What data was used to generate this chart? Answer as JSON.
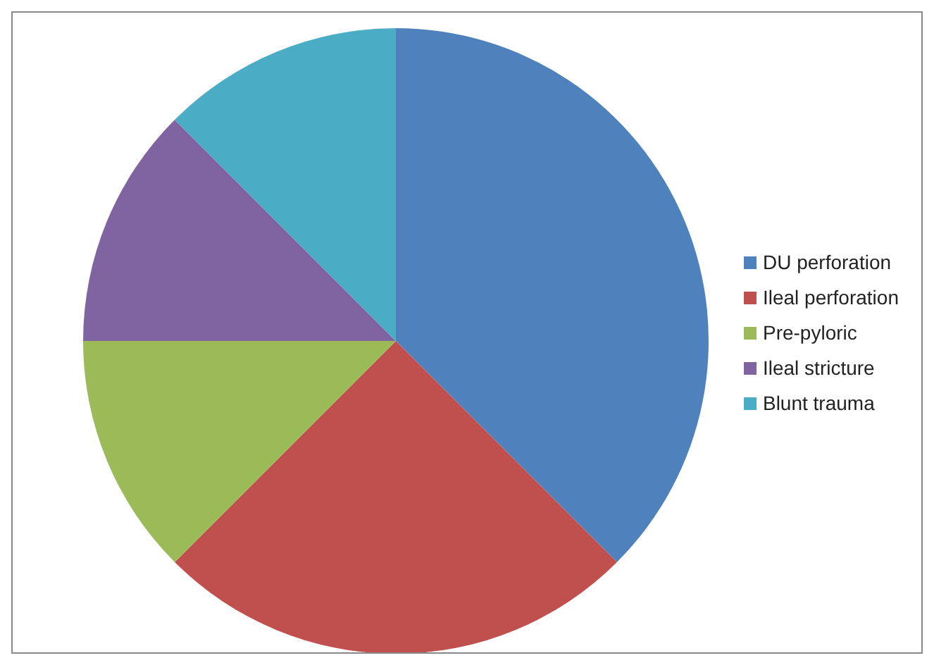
{
  "chart_data": {
    "type": "pie",
    "categories": [
      "DU perforation",
      "Ileal perforation",
      "Pre-pyloric",
      "Ileal stricture",
      "Blunt trauma"
    ],
    "values": [
      37.5,
      25,
      12.5,
      12.5,
      12.5
    ],
    "colors": [
      "#4f81bd",
      "#c0504d",
      "#9bbb59",
      "#8064a2",
      "#4bacc6"
    ],
    "legend": "right"
  }
}
